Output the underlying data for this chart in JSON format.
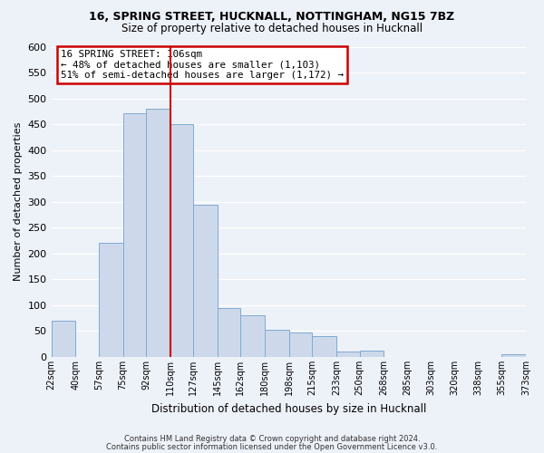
{
  "title": "16, SPRING STREET, HUCKNALL, NOTTINGHAM, NG15 7BZ",
  "subtitle": "Size of property relative to detached houses in Hucknall",
  "xlabel": "Distribution of detached houses by size in Hucknall",
  "ylabel": "Number of detached properties",
  "bin_edges": [
    22,
    40,
    57,
    75,
    92,
    110,
    127,
    145,
    162,
    180,
    198,
    215,
    233,
    250,
    268,
    285,
    303,
    320,
    338,
    355,
    373
  ],
  "bar_heights": [
    70,
    0,
    220,
    472,
    480,
    450,
    295,
    95,
    80,
    53,
    47,
    40,
    10,
    12,
    0,
    0,
    0,
    0,
    0,
    5
  ],
  "bar_color": "#cdd9ea",
  "bar_edge_color": "#7eaad4",
  "vline_x": 110,
  "vline_color": "#cc0000",
  "ylim": [
    0,
    600
  ],
  "yticks": [
    0,
    50,
    100,
    150,
    200,
    250,
    300,
    350,
    400,
    450,
    500,
    550,
    600
  ],
  "x_tick_labels": [
    "22sqm",
    "40sqm",
    "57sqm",
    "75sqm",
    "92sqm",
    "110sqm",
    "127sqm",
    "145sqm",
    "162sqm",
    "180sqm",
    "198sqm",
    "215sqm",
    "233sqm",
    "250sqm",
    "268sqm",
    "285sqm",
    "303sqm",
    "320sqm",
    "338sqm",
    "355sqm",
    "373sqm"
  ],
  "annotation_title": "16 SPRING STREET: 106sqm",
  "annotation_line1": "← 48% of detached houses are smaller (1,103)",
  "annotation_line2": "51% of semi-detached houses are larger (1,172) →",
  "annotation_box_color": "#ffffff",
  "annotation_box_edge": "#cc0000",
  "footer1": "Contains HM Land Registry data © Crown copyright and database right 2024.",
  "footer2": "Contains public sector information licensed under the Open Government Licence v3.0.",
  "bg_color": "#edf1f8",
  "grid_color": "#ffffff",
  "title_fontsize": 9,
  "subtitle_fontsize": 8.5
}
